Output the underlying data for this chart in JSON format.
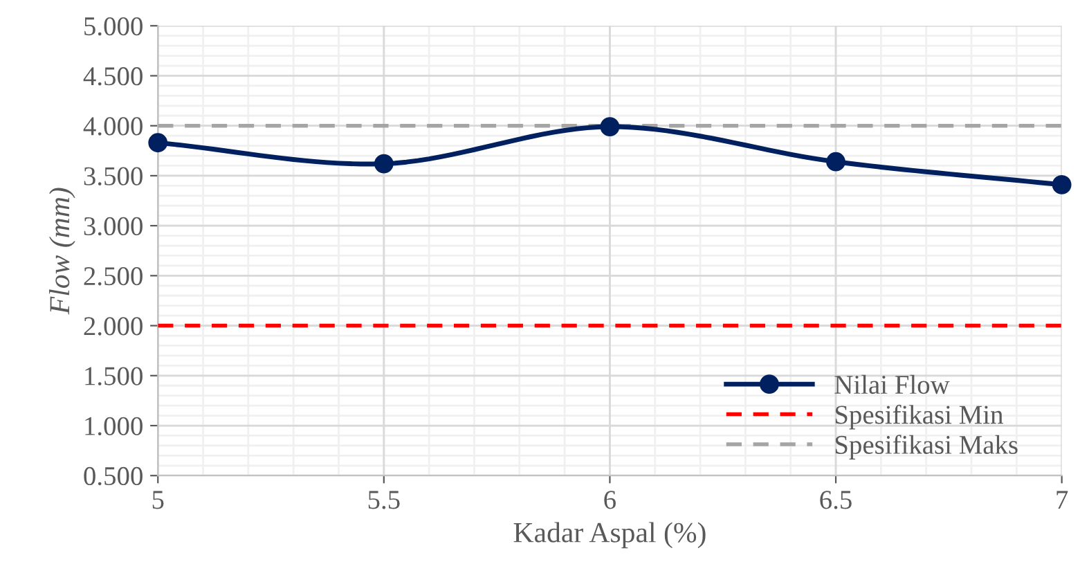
{
  "chart_data": {
    "type": "line",
    "xlabel": "Kadar Aspal (%)",
    "ylabel": "Flow (mm)",
    "x": [
      5,
      5.5,
      6,
      6.5,
      7
    ],
    "series": [
      {
        "name": "Nilai Flow",
        "color": "#002060",
        "values": [
          3.83,
          3.62,
          3.99,
          3.64,
          3.41
        ]
      }
    ],
    "ref_lines": [
      {
        "axis": "y",
        "value": 2.0,
        "label": "Spesifikasi Min",
        "color": "#ff0000",
        "line_style": "dashed"
      },
      {
        "axis": "y",
        "value": 4.0,
        "label": "Spesifikasi Maks",
        "color": "#a5a5a5",
        "line_style": "dashed"
      }
    ],
    "xlim": [
      5,
      7
    ],
    "xticks": [
      5,
      5.5,
      6,
      6.5,
      7
    ],
    "ylim": [
      0.5,
      5.0
    ],
    "yticks": [
      {
        "value": 0.5,
        "label": "0.500"
      },
      {
        "value": 1.0,
        "label": "1.000"
      },
      {
        "value": 1.5,
        "label": "1.500"
      },
      {
        "value": 2.0,
        "label": "2.000"
      },
      {
        "value": 2.5,
        "label": "2.500"
      },
      {
        "value": 3.0,
        "label": "3.000"
      },
      {
        "value": 3.5,
        "label": "3.500"
      },
      {
        "value": 4.0,
        "label": "4.000"
      },
      {
        "value": 4.5,
        "label": "4.500"
      },
      {
        "value": 5.0,
        "label": "5.000"
      }
    ],
    "grid": true,
    "legend": "bottom right",
    "marker": "circle",
    "line_style": "solid"
  }
}
